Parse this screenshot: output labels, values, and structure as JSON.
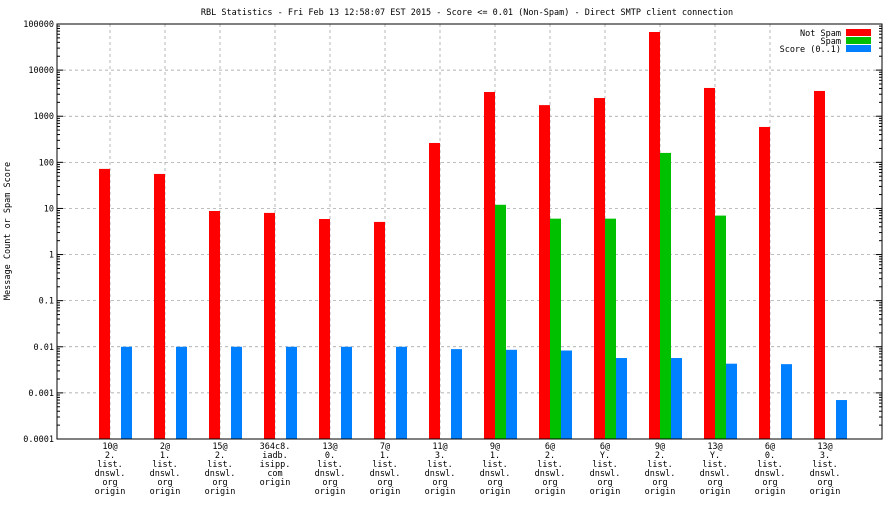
{
  "chart_data": {
    "type": "bar",
    "title": "RBL Statistics - Fri Feb 13 12:58:07 EST 2015 - Score <= 0.01 (Non-Spam) - Direct SMTP client connection",
    "xlabel": "",
    "ylabel": "Message Count or Spam Score",
    "yscale": "log",
    "ylim": [
      0.0001,
      100000
    ],
    "yticks": [
      "0.0001",
      "0.001",
      "0.01",
      "0.1",
      "1",
      "10",
      "100",
      "1000",
      "10000",
      "100000"
    ],
    "grid": true,
    "legend_position": "top-right",
    "categories": [
      [
        "10@",
        "2.",
        "list.",
        "dnswl.",
        "org",
        "origin"
      ],
      [
        "2@",
        "1.",
        "list.",
        "dnswl.",
        "org",
        "origin"
      ],
      [
        "15@",
        "2.",
        "list.",
        "dnswl.",
        "org",
        "origin"
      ],
      [
        "364c8.",
        "iadb.",
        "isipp.",
        "com",
        "origin"
      ],
      [
        "13@",
        "0.",
        "list.",
        "dnswl.",
        "org",
        "origin"
      ],
      [
        "7@",
        "1.",
        "list.",
        "dnswl.",
        "org",
        "origin"
      ],
      [
        "11@",
        "3.",
        "list.",
        "dnswl.",
        "org",
        "origin"
      ],
      [
        "9@",
        "1.",
        "list.",
        "dnswl.",
        "org",
        "origin"
      ],
      [
        "6@",
        "2.",
        "list.",
        "dnswl.",
        "org",
        "origin"
      ],
      [
        "6@",
        "Y.",
        "list.",
        "dnswl.",
        "org",
        "origin"
      ],
      [
        "9@",
        "2.",
        "list.",
        "dnswl.",
        "org",
        "origin"
      ],
      [
        "13@",
        "Y.",
        "list.",
        "dnswl.",
        "org",
        "origin"
      ],
      [
        "6@",
        "0.",
        "list.",
        "dnswl.",
        "org",
        "origin"
      ],
      [
        "13@",
        "3.",
        "list.",
        "dnswl.",
        "org",
        "origin"
      ]
    ],
    "series": [
      {
        "name": "Not Spam",
        "color": "#ff0000",
        "values": [
          72,
          56,
          8.8,
          8,
          5.9,
          5.1,
          263,
          3350,
          1740,
          2480,
          67100,
          4100,
          585,
          3530
        ]
      },
      {
        "name": "Spam",
        "color": "#00c000",
        "values": [
          null,
          null,
          null,
          null,
          null,
          null,
          null,
          12,
          6,
          6,
          160,
          7,
          null,
          null
        ]
      },
      {
        "name": "Score (0..1)",
        "color": "#0080ff",
        "values": [
          0.01,
          0.01,
          0.01,
          0.01,
          0.01,
          0.01,
          0.0089,
          0.0086,
          0.0083,
          0.0057,
          0.0057,
          0.0043,
          0.0042,
          0.0007
        ]
      }
    ]
  }
}
